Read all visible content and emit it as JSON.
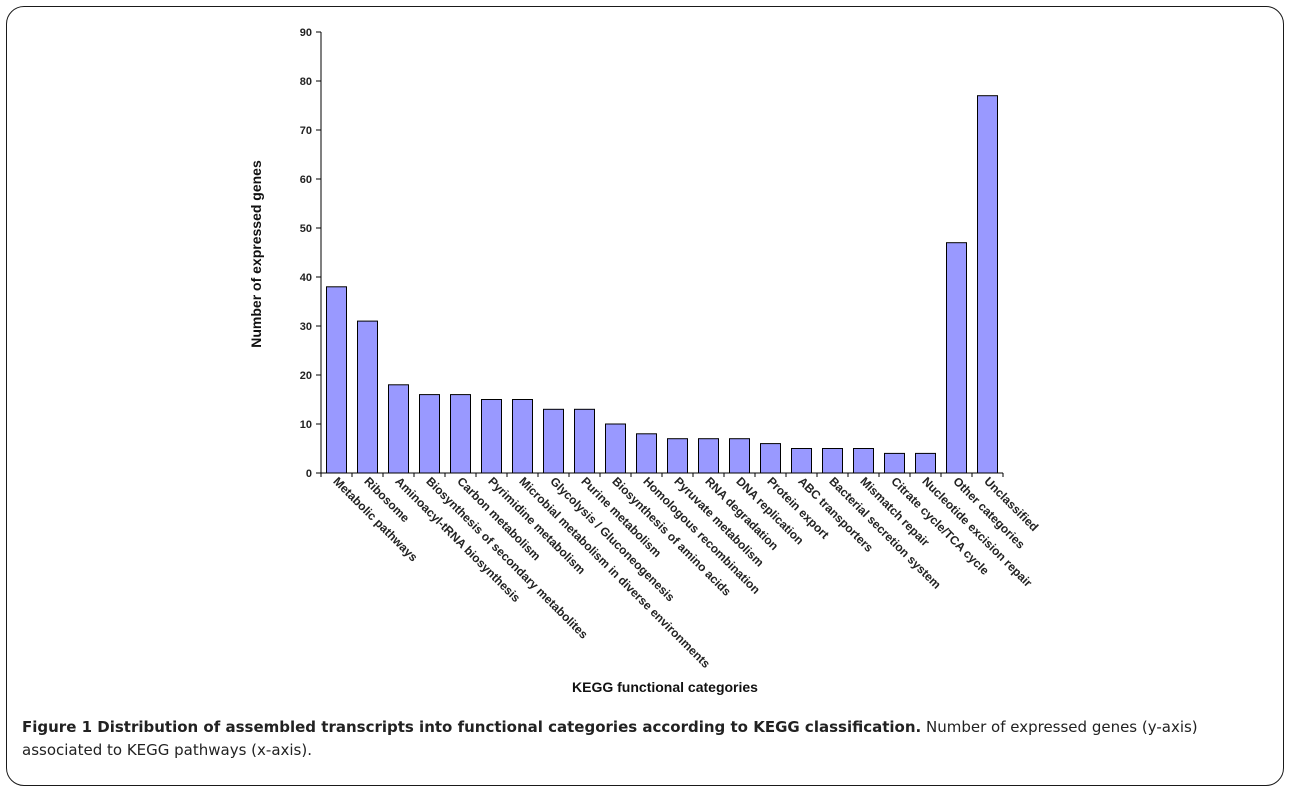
{
  "chart_data": {
    "type": "bar",
    "title": "",
    "xlabel": "KEGG functional categories",
    "ylabel": "Number of expressed genes",
    "ylim": [
      0,
      90
    ],
    "yticks": [
      0,
      10,
      20,
      30,
      40,
      50,
      60,
      70,
      80,
      90
    ],
    "grid": false,
    "legend": "none",
    "bar_color": "#9999ff",
    "categories": [
      "Metabolic pathways",
      "Ribosome",
      "Aminoacyl-tRNA biosynthesis",
      "Biosynthesis of secondary metabolites",
      "Carbon metabolism",
      "Pyrimidine metabolism",
      "Microbial metabolism in diverse environments",
      "Glycolysis / Gluconeogenesis",
      "Purine metabolism",
      "Biosynthesis of amino acids",
      "Homologous recombination",
      "Pyruvate metabolism",
      "RNA degradation",
      "DNA replication",
      "Protein export",
      "ABC transporters",
      "Bacterial secretion system",
      "Mismatch repair",
      "Citrate cycle/TCA cycle",
      "Nucleotide excision repair",
      "Other categories",
      "Unclassified"
    ],
    "values": [
      38,
      31,
      18,
      16,
      16,
      15,
      15,
      13,
      13,
      10,
      8,
      7,
      7,
      7,
      6,
      5,
      5,
      5,
      4,
      4,
      47,
      77
    ]
  },
  "caption": {
    "lead": "Figure 1 Distribution of assembled transcripts into functional categories according to KEGG classification.",
    "text": " Number of expressed genes (y-axis) associated to KEGG pathways (x-axis)."
  }
}
